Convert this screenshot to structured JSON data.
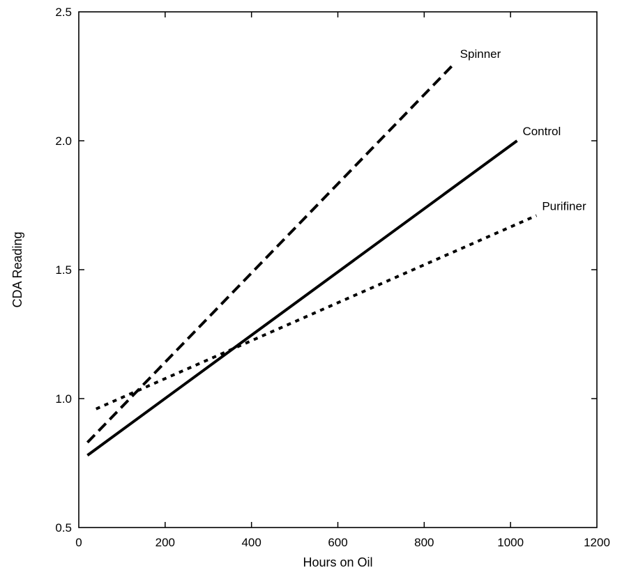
{
  "chart_data": {
    "type": "line",
    "title": "",
    "xlabel": "Hours on Oil",
    "ylabel": "CDA Reading",
    "xlim": [
      0,
      1200
    ],
    "ylim": [
      0.5,
      2.5
    ],
    "xticks": [
      0,
      200,
      400,
      600,
      800,
      1000,
      1200
    ],
    "yticks": [
      0.5,
      1.0,
      1.5,
      2.0,
      2.5
    ],
    "xtick_labels": [
      "0",
      "200",
      "400",
      "600",
      "800",
      "1000",
      "1200"
    ],
    "ytick_labels": [
      "0.5",
      "1.0",
      "1.5",
      "2.0",
      "2.5"
    ],
    "grid": false,
    "legend": "none",
    "series": [
      {
        "name": "Spinner",
        "style": "dashed",
        "color": "#000000",
        "x": [
          20,
          870
        ],
        "y": [
          0.83,
          2.3
        ]
      },
      {
        "name": "Control",
        "style": "solid",
        "color": "#000000",
        "x": [
          20,
          1015
        ],
        "y": [
          0.78,
          2.0
        ]
      },
      {
        "name": "Purifiner",
        "style": "dotted",
        "color": "#000000",
        "x": [
          40,
          1060
        ],
        "y": [
          0.96,
          1.71
        ]
      }
    ]
  }
}
